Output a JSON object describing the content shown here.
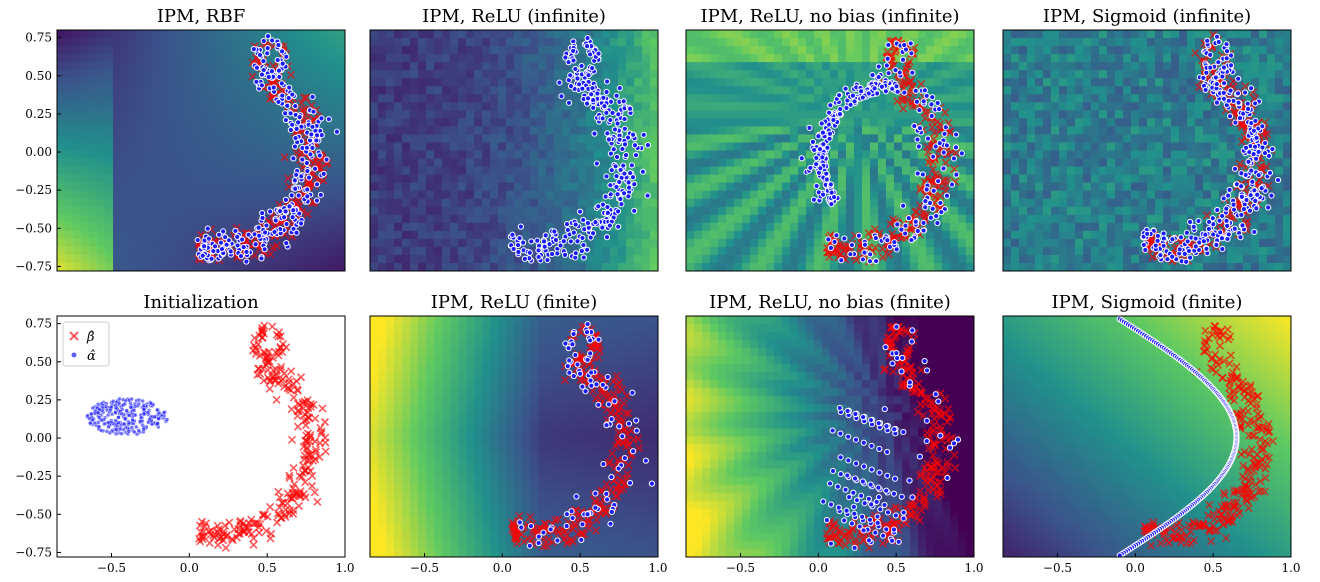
{
  "figure": {
    "colors": {
      "beta_points": "#ff0000",
      "alpha_points": "#1a1aff",
      "alpha_edge": "#ffffff",
      "colormap": [
        "#440154",
        "#3b528b",
        "#21918c",
        "#5ec962",
        "#fde725"
      ]
    }
  },
  "chart_data": [
    {
      "id": "rbf",
      "type": "scatter",
      "title": "IPM, RBF",
      "xlim": [
        -0.85,
        1.0
      ],
      "ylim": [
        -0.78,
        0.8
      ],
      "yticks": [
        "0.75",
        "0.50",
        "0.25",
        "0.00",
        "−0.25",
        "−0.50",
        "−0.75"
      ],
      "xticks": [],
      "background": "heatmap",
      "background_pattern": "rbf",
      "series": [
        {
          "marker": "x",
          "shape": "crescent",
          "description_key": "beta"
        },
        {
          "marker": "o",
          "shape": "crescent-inner",
          "description_key": "alpha"
        }
      ]
    },
    {
      "id": "relu_inf",
      "type": "scatter",
      "title": "IPM, ReLU (infinite)",
      "xlim": [
        -0.85,
        1.0
      ],
      "ylim": [
        -0.78,
        0.8
      ],
      "yticks": [],
      "xticks": [],
      "background": "heatmap",
      "background_pattern": "noise-right",
      "series": [
        {
          "marker": "x",
          "shape": "crescent-hidden"
        },
        {
          "marker": "o",
          "shape": "crescent"
        }
      ]
    },
    {
      "id": "relu_nobias_inf",
      "type": "scatter",
      "title": "IPM, ReLU, no bias (infinite)",
      "xlim": [
        -0.85,
        1.0
      ],
      "ylim": [
        -0.78,
        0.8
      ],
      "yticks": [],
      "xticks": [],
      "background": "heatmap",
      "background_pattern": "rays",
      "series": [
        {
          "marker": "x",
          "shape": "crescent"
        },
        {
          "marker": "o",
          "shape": "arc"
        }
      ]
    },
    {
      "id": "sigmoid_inf",
      "type": "scatter",
      "title": "IPM, Sigmoid (infinite)",
      "xlim": [
        -0.85,
        1.0
      ],
      "ylim": [
        -0.78,
        0.8
      ],
      "yticks": [],
      "xticks": [],
      "background": "heatmap",
      "background_pattern": "noise",
      "series": [
        {
          "marker": "x",
          "shape": "crescent"
        },
        {
          "marker": "o",
          "shape": "crescent"
        }
      ]
    },
    {
      "id": "init",
      "type": "scatter",
      "title": "Initialization",
      "xlim": [
        -0.85,
        1.0
      ],
      "ylim": [
        -0.78,
        0.8
      ],
      "yticks": [
        "0.75",
        "0.50",
        "0.25",
        "0.00",
        "−0.25",
        "−0.50",
        "−0.75"
      ],
      "xticks": [
        "−0.5",
        "0.0",
        "0.5",
        "1.0"
      ],
      "background": "white",
      "legend": {
        "placement": "top-left",
        "entries": [
          "β̂",
          "α̂"
        ]
      },
      "series": [
        {
          "name": "β̂",
          "marker": "x",
          "shape": "crescent"
        },
        {
          "name": "α̂",
          "marker": "o",
          "shape": "ellipse",
          "center": [
            -0.4,
            0.14
          ],
          "radius": [
            0.26,
            0.12
          ]
        }
      ]
    },
    {
      "id": "relu_fin",
      "type": "scatter",
      "title": "IPM, ReLU (finite)",
      "xlim": [
        -0.85,
        1.0
      ],
      "ylim": [
        -0.78,
        0.8
      ],
      "yticks": [],
      "xticks": [
        "−0.5",
        "0.0",
        "0.5",
        "1.0"
      ],
      "background": "heatmap",
      "background_pattern": "smooth-left",
      "series": [
        {
          "marker": "x",
          "shape": "crescent"
        },
        {
          "marker": "o",
          "shape": "crescent-sparse"
        }
      ]
    },
    {
      "id": "relu_nobias_fin",
      "type": "scatter",
      "title": "IPM, ReLU, no bias (finite)",
      "xlim": [
        -0.85,
        1.0
      ],
      "ylim": [
        -0.78,
        0.8
      ],
      "yticks": [],
      "xticks": [
        "−0.5",
        "0.0",
        "0.5",
        "1.0"
      ],
      "background": "heatmap",
      "background_pattern": "smooth-left-rays",
      "series": [
        {
          "marker": "x",
          "shape": "crescent"
        },
        {
          "marker": "o",
          "shape": "streaks"
        }
      ]
    },
    {
      "id": "sigmoid_fin",
      "type": "scatter",
      "title": "IPM, Sigmoid (finite)",
      "xlim": [
        -0.85,
        1.0
      ],
      "ylim": [
        -0.78,
        0.8
      ],
      "yticks": [],
      "xticks": [
        "−0.5",
        "0.0",
        "0.5",
        "1.0"
      ],
      "background": "heatmap",
      "background_pattern": "diagonal",
      "series": [
        {
          "marker": "x",
          "shape": "crescent"
        },
        {
          "marker": "o",
          "shape": "curve"
        }
      ]
    }
  ]
}
